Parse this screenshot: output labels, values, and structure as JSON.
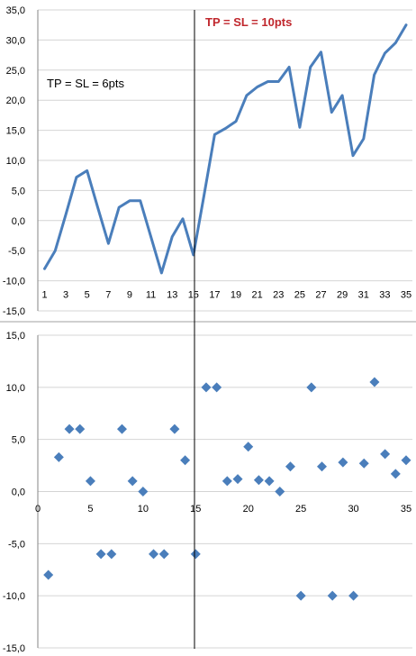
{
  "chart_data": [
    {
      "type": "line",
      "x": [
        1,
        2,
        3,
        4,
        5,
        6,
        7,
        8,
        9,
        10,
        11,
        12,
        13,
        14,
        15,
        16,
        17,
        18,
        19,
        20,
        21,
        22,
        23,
        24,
        25,
        26,
        27,
        28,
        29,
        30,
        31,
        32,
        33,
        34,
        35
      ],
      "series": [
        {
          "values": [
            -8.0,
            -5.0,
            1.0,
            7.2,
            8.3,
            2.2,
            -3.8,
            2.2,
            3.3,
            3.3,
            -2.7,
            -8.7,
            -2.7,
            0.3,
            -5.7,
            4.2,
            14.3,
            15.3,
            16.5,
            20.8,
            22.2,
            23.1,
            23.1,
            25.5,
            15.5,
            25.5,
            28.0,
            18.0,
            20.8,
            10.8,
            13.6,
            24.2,
            27.8,
            29.5,
            32.5
          ],
          "color": "#4a7ebb"
        }
      ],
      "ylim": [
        -15,
        35
      ],
      "yticks": [
        "-15,0",
        "-10,0",
        "-5,0",
        "0,0",
        "5,0",
        "10,0",
        "15,0",
        "20,0",
        "25,0",
        "30,0",
        "35,0"
      ],
      "xticks": [
        "1",
        "3",
        "5",
        "7",
        "9",
        "11",
        "13",
        "15",
        "17",
        "19",
        "21",
        "23",
        "25",
        "27",
        "29",
        "31",
        "33",
        "35"
      ],
      "annotations": [
        {
          "text": "TP = SL = 6pts",
          "color": "#000000"
        },
        {
          "text": "TP = SL = 10pts",
          "color": "#c0272d"
        }
      ],
      "grid": true
    },
    {
      "type": "scatter",
      "x": [
        1,
        2,
        3,
        4,
        5,
        6,
        7,
        8,
        9,
        10,
        11,
        12,
        13,
        14,
        15,
        16,
        17,
        18,
        19,
        20,
        21,
        22,
        23,
        24,
        25,
        26,
        27,
        28,
        29,
        30,
        31,
        32,
        33,
        34,
        35
      ],
      "series": [
        {
          "values": [
            -8,
            3.3,
            6,
            6,
            1,
            -6,
            -6,
            6,
            1,
            0,
            -6,
            -6,
            6,
            3,
            -6,
            10,
            10,
            1,
            1.2,
            4.3,
            1.1,
            1,
            0,
            2.4,
            -10,
            10,
            2.4,
            -10,
            2.8,
            -10,
            2.7,
            10.5,
            3.6,
            1.7,
            3
          ],
          "color": "#4a7ebb",
          "marker": "diamond"
        }
      ],
      "xlim": [
        0,
        35
      ],
      "ylim": [
        -15,
        15
      ],
      "yticks": [
        "-15,0",
        "-10,0",
        "-5,0",
        "0,0",
        "5,0",
        "10,0",
        "15,0"
      ],
      "xticks": [
        "0",
        "5",
        "10",
        "15",
        "20",
        "25",
        "30",
        "35"
      ],
      "grid": true
    }
  ]
}
